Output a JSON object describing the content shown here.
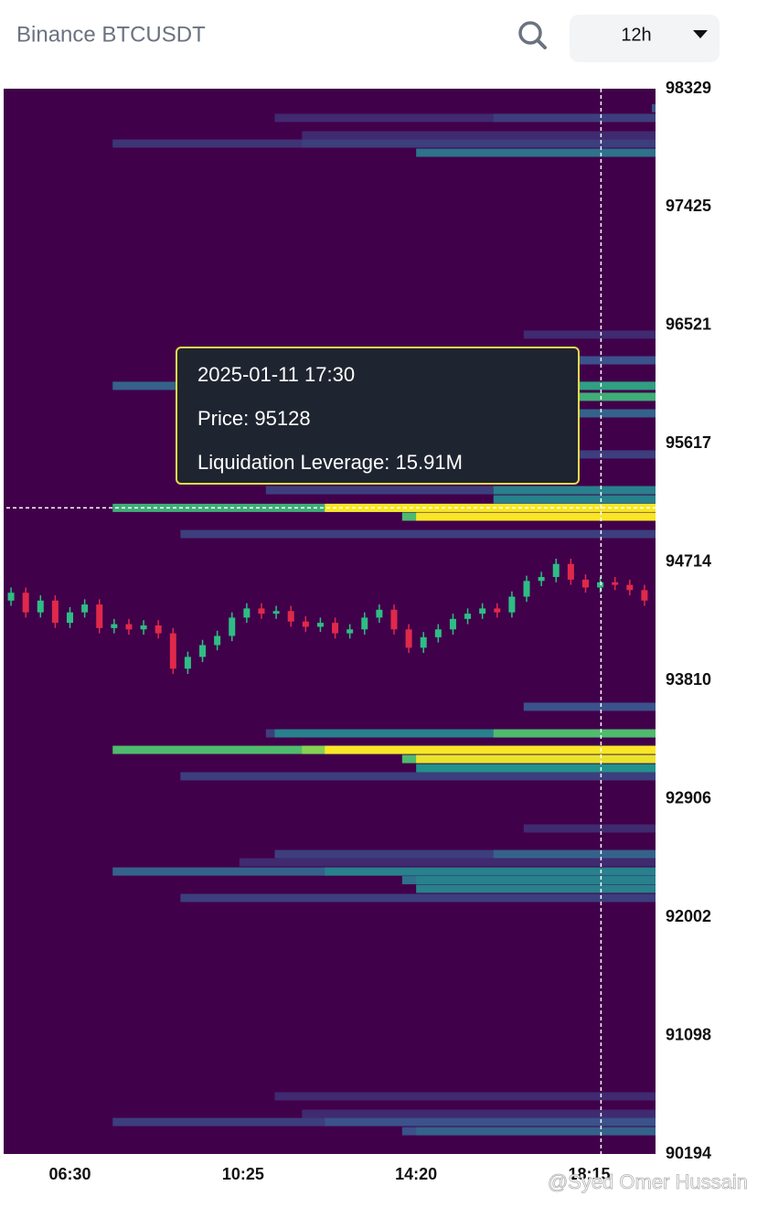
{
  "header": {
    "title": "Binance BTCUSDT",
    "interval": "12h"
  },
  "watermark": "@Syed Omer Hussain",
  "chart_data": {
    "type": "heatmap",
    "ylim": [
      90194,
      98329
    ],
    "yticks": [
      98329,
      97425,
      96521,
      95617,
      94714,
      93810,
      92906,
      92002,
      91098,
      90194
    ],
    "xlim": [
      300,
      1185
    ],
    "xticks": [
      {
        "value": 390,
        "label": "06:30"
      },
      {
        "value": 625,
        "label": "10:25"
      },
      {
        "value": 860,
        "label": "14:20"
      },
      {
        "value": 1095,
        "label": "18:15"
      }
    ],
    "background": "#41004a",
    "colorscale": [
      "#440154",
      "#3b528b",
      "#21918c",
      "#5ec962",
      "#fde725"
    ],
    "zlim": [
      0,
      16
    ],
    "up_color": "#2ebd85",
    "down_color": "#e0294a",
    "bands": [
      {
        "price": 98106,
        "start": 668,
        "value": 2
      },
      {
        "price": 98106,
        "start": 965,
        "value": 3
      },
      {
        "price": 98180,
        "start": 1180,
        "value": 4
      },
      {
        "price": 97973,
        "start": 705,
        "value": 2
      },
      {
        "price": 97910,
        "start": 448,
        "value": 2.5
      },
      {
        "price": 97910,
        "start": 705,
        "value": 3
      },
      {
        "price": 97840,
        "start": 860,
        "value": 6
      },
      {
        "price": 96451,
        "start": 1006,
        "value": 2
      },
      {
        "price": 96255,
        "start": 1076,
        "value": 4
      },
      {
        "price": 96060,
        "start": 448,
        "value": 5
      },
      {
        "price": 96060,
        "start": 1076,
        "value": 9
      },
      {
        "price": 95976,
        "start": 1076,
        "value": 10
      },
      {
        "price": 95850,
        "start": 1076,
        "value": 5
      },
      {
        "price": 95536,
        "start": 1076,
        "value": 3
      },
      {
        "price": 95263,
        "start": 656,
        "value": 3
      },
      {
        "price": 95263,
        "start": 965,
        "value": 7
      },
      {
        "price": 95193,
        "start": 965,
        "value": 7
      },
      {
        "price": 95128,
        "start": 448,
        "value": 10
      },
      {
        "price": 95128,
        "start": 736,
        "value": 15.91
      },
      {
        "price": 95061,
        "start": 841,
        "value": 11
      },
      {
        "price": 95061,
        "start": 860,
        "value": 15.91
      },
      {
        "price": 94928,
        "start": 540,
        "value": 3
      },
      {
        "price": 93609,
        "start": 1006,
        "value": 4
      },
      {
        "price": 93406,
        "start": 656,
        "value": 3
      },
      {
        "price": 93406,
        "start": 668,
        "value": 7
      },
      {
        "price": 93406,
        "start": 965,
        "value": 11
      },
      {
        "price": 93280,
        "start": 448,
        "value": 11
      },
      {
        "price": 93280,
        "start": 705,
        "value": 13
      },
      {
        "price": 93280,
        "start": 736,
        "value": 15.91
      },
      {
        "price": 93210,
        "start": 841,
        "value": 11
      },
      {
        "price": 93210,
        "start": 860,
        "value": 15.5
      },
      {
        "price": 93140,
        "start": 860,
        "value": 8
      },
      {
        "price": 93078,
        "start": 540,
        "value": 3
      },
      {
        "price": 92680,
        "start": 1006,
        "value": 2
      },
      {
        "price": 92484,
        "start": 668,
        "value": 3
      },
      {
        "price": 92484,
        "start": 965,
        "value": 5
      },
      {
        "price": 92421,
        "start": 620,
        "value": 2
      },
      {
        "price": 92351,
        "start": 448,
        "value": 5
      },
      {
        "price": 92351,
        "start": 736,
        "value": 7
      },
      {
        "price": 92285,
        "start": 841,
        "value": 6
      },
      {
        "price": 92285,
        "start": 860,
        "value": 7
      },
      {
        "price": 92219,
        "start": 860,
        "value": 7
      },
      {
        "price": 92149,
        "start": 540,
        "value": 3
      },
      {
        "price": 90634,
        "start": 668,
        "value": 2
      },
      {
        "price": 90501,
        "start": 705,
        "value": 2
      },
      {
        "price": 90438,
        "start": 448,
        "value": 3
      },
      {
        "price": 90438,
        "start": 736,
        "value": 4
      },
      {
        "price": 90368,
        "start": 841,
        "value": 4
      },
      {
        "price": 90368,
        "start": 860,
        "value": 5
      }
    ],
    "candles": {
      "x": [
        310,
        330,
        350,
        370,
        390,
        410,
        430,
        450,
        470,
        490,
        510,
        530,
        550,
        570,
        590,
        610,
        630,
        650,
        670,
        690,
        710,
        730,
        750,
        770,
        790,
        810,
        830,
        850,
        870,
        890,
        910,
        930,
        950,
        970,
        990,
        1010,
        1030,
        1050,
        1070,
        1090,
        1110,
        1130,
        1150,
        1170
      ],
      "open": [
        94420,
        94480,
        94330,
        94420,
        94250,
        94330,
        94390,
        94210,
        94240,
        94200,
        94230,
        94170,
        93900,
        93990,
        94080,
        94150,
        94290,
        94360,
        94320,
        94340,
        94260,
        94220,
        94250,
        94170,
        94200,
        94290,
        94350,
        94200,
        94060,
        94140,
        94200,
        94280,
        94320,
        94360,
        94330,
        94450,
        94570,
        94600,
        94700,
        94580,
        94520,
        94560,
        94540,
        94500
      ],
      "high": [
        94520,
        94520,
        94460,
        94460,
        94370,
        94430,
        94430,
        94280,
        94280,
        94270,
        94270,
        94210,
        94030,
        94120,
        94190,
        94330,
        94400,
        94400,
        94380,
        94380,
        94300,
        94290,
        94290,
        94240,
        94330,
        94390,
        94390,
        94240,
        94180,
        94240,
        94320,
        94360,
        94400,
        94400,
        94490,
        94610,
        94640,
        94740,
        94740,
        94620,
        94600,
        94600,
        94580,
        94540
      ],
      "low": [
        94380,
        94290,
        94290,
        94210,
        94210,
        94290,
        94170,
        94170,
        94160,
        94160,
        94130,
        93860,
        93860,
        93950,
        94040,
        94110,
        94250,
        94280,
        94280,
        94220,
        94180,
        94180,
        94130,
        94130,
        94160,
        94250,
        94160,
        94020,
        94020,
        94100,
        94160,
        94240,
        94280,
        94290,
        94290,
        94410,
        94530,
        94560,
        94540,
        94480,
        94480,
        94500,
        94460,
        94380
      ],
      "close": [
        94480,
        94330,
        94420,
        94250,
        94330,
        94390,
        94210,
        94240,
        94200,
        94230,
        94170,
        93900,
        93990,
        94080,
        94150,
        94290,
        94360,
        94320,
        94340,
        94260,
        94220,
        94250,
        94170,
        94200,
        94290,
        94350,
        94200,
        94060,
        94140,
        94200,
        94280,
        94320,
        94360,
        94330,
        94450,
        94570,
        94600,
        94700,
        94580,
        94520,
        94560,
        94540,
        94500,
        94420
      ]
    },
    "crosshair_x": 1111,
    "tooltip": {
      "time": "2025-01-11 17:30",
      "price": {
        "label": "Price:",
        "value": 95128
      },
      "leverage": {
        "label": "Liquidation Leverage:",
        "value": 15.91,
        "value_label": "15.91M"
      }
    }
  }
}
